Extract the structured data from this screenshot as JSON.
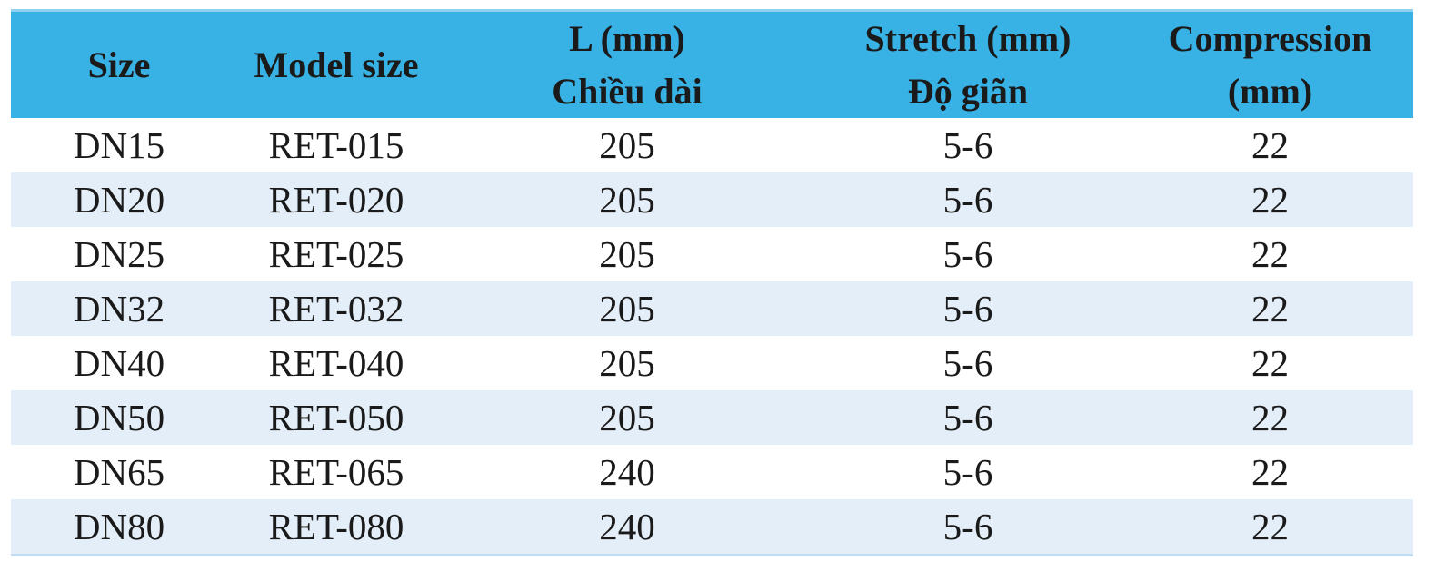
{
  "table": {
    "header": [
      [
        "Size"
      ],
      [
        "Model size"
      ],
      [
        "L (mm)",
        "Chiều dài"
      ],
      [
        "Stretch (mm)",
        "Độ giãn"
      ],
      [
        "Compression",
        "(mm)"
      ]
    ],
    "rows": [
      [
        "DN15",
        "RET-015",
        "205",
        "5-6",
        "22"
      ],
      [
        "DN20",
        "RET-020",
        "205",
        "5-6",
        "22"
      ],
      [
        "DN25",
        "RET-025",
        "205",
        "5-6",
        "22"
      ],
      [
        "DN32",
        "RET-032",
        "205",
        "5-6",
        "22"
      ],
      [
        "DN40",
        "RET-040",
        "205",
        "5-6",
        "22"
      ],
      [
        "DN50",
        "RET-050",
        "205",
        "5-6",
        "22"
      ],
      [
        "DN65",
        "RET-065",
        "240",
        "5-6",
        "22"
      ],
      [
        "DN80",
        "RET-080",
        "240",
        "5-6",
        "22"
      ]
    ]
  }
}
